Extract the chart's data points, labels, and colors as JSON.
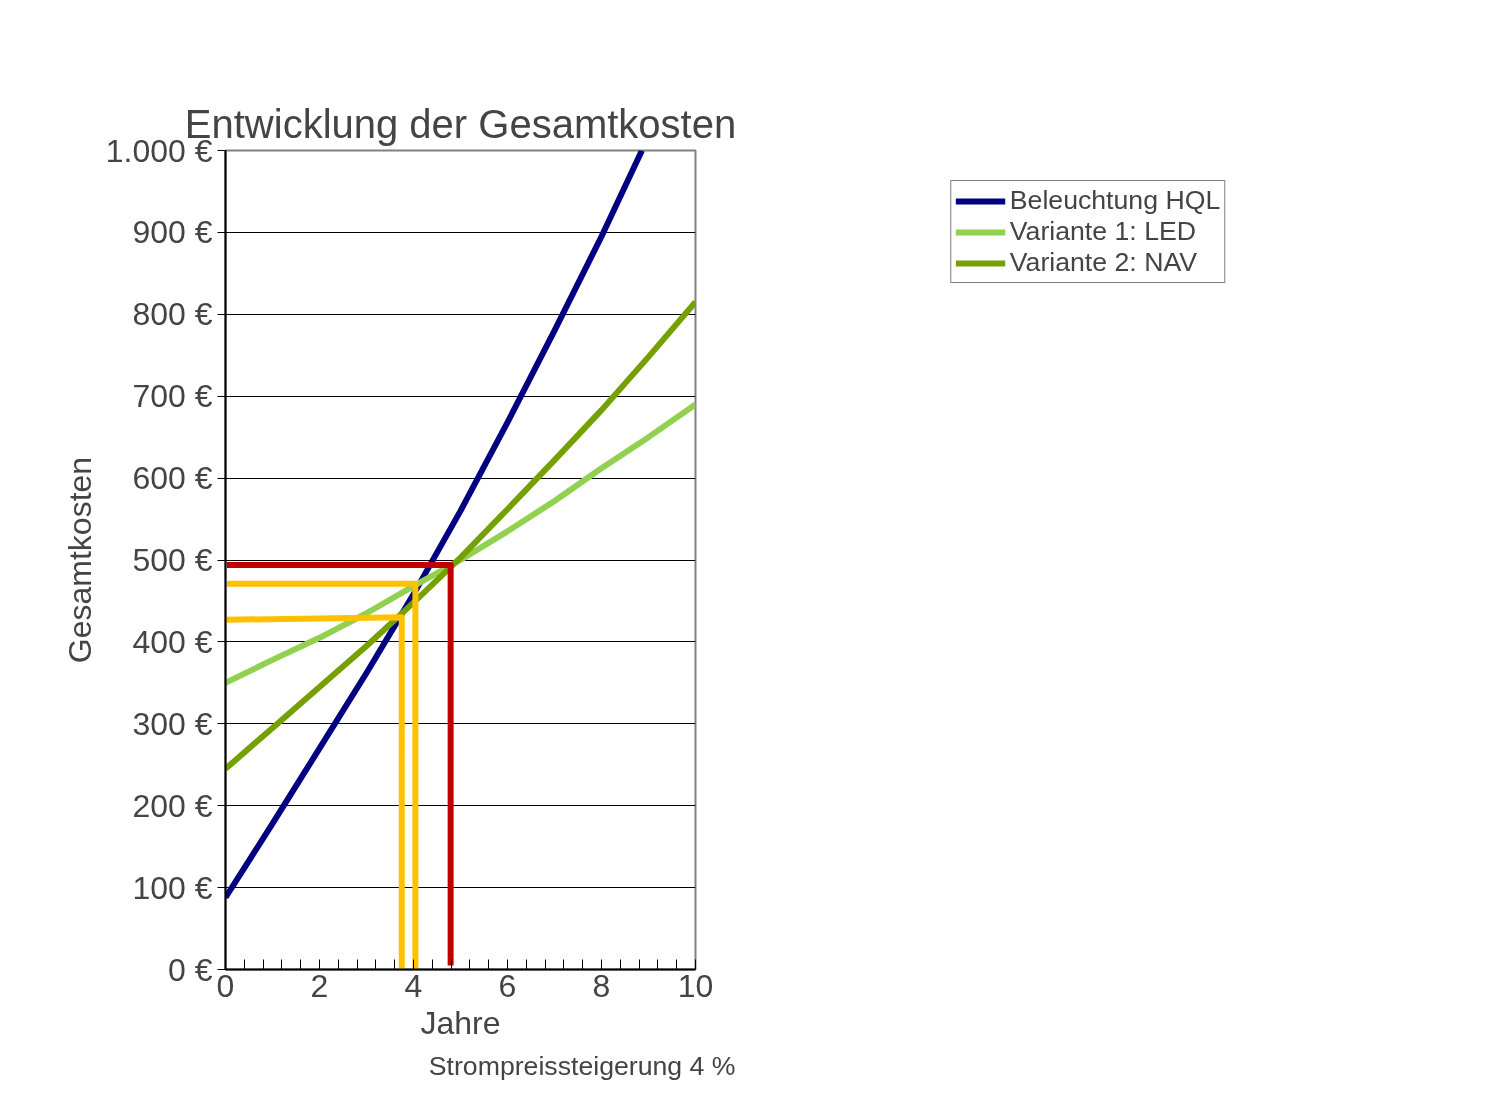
{
  "chart_data": {
    "type": "line",
    "title": "Entwicklung der Gesamtkosten",
    "xlabel": "Jahre",
    "ylabel": "Gesamtkosten",
    "annotations": [
      "Strompreissteigerung 4 %"
    ],
    "xlim": [
      0,
      10
    ],
    "ylim": [
      0,
      1000
    ],
    "xticks": [
      0,
      {
        "value": 0.4,
        "label": null
      },
      {
        "value": 0.8,
        "label": null
      },
      {
        "value": 1.2,
        "label": null
      },
      {
        "value": 1.6,
        "label": null
      },
      2,
      {
        "value": 2.4,
        "label": null
      },
      {
        "value": 2.8,
        "label": null
      },
      {
        "value": 3.2,
        "label": null
      },
      {
        "value": 3.6,
        "label": null
      },
      4,
      {
        "value": 4.4,
        "label": null
      },
      {
        "value": 4.8,
        "label": null
      },
      {
        "value": 5.2,
        "label": null
      },
      {
        "value": 5.6,
        "label": null
      },
      6,
      {
        "value": 6.4,
        "label": null
      },
      {
        "value": 6.8,
        "label": null
      },
      {
        "value": 7.2,
        "label": null
      },
      {
        "value": 7.6,
        "label": null
      },
      8,
      {
        "value": 8.4,
        "label": null
      },
      {
        "value": 8.8,
        "label": null
      },
      {
        "value": 9.2,
        "label": null
      },
      {
        "value": 9.6,
        "label": null
      },
      10
    ],
    "yticks": [
      {
        "value": 0,
        "label": "0 €"
      },
      {
        "value": 100,
        "label": "100 €"
      },
      {
        "value": 200,
        "label": "200 €"
      },
      {
        "value": 300,
        "label": "300 €"
      },
      {
        "value": 400,
        "label": "400 €"
      },
      {
        "value": 500,
        "label": "500 €"
      },
      {
        "value": 600,
        "label": "600 €"
      },
      {
        "value": 700,
        "label": "700 €"
      },
      {
        "value": 800,
        "label": "800 €"
      },
      {
        "value": 900,
        "label": "900 €"
      },
      {
        "value": 1000,
        "label": "1.000 €"
      }
    ],
    "grid": "y",
    "legend": "right",
    "line_style": "solid",
    "series": [
      {
        "name": "Beleuchtung HQL",
        "color": "#000080",
        "x": [
          0,
          1,
          2,
          3,
          4,
          5,
          6,
          7,
          8,
          8.86
        ],
        "values": [
          88,
          178,
          270,
          362,
          458,
          560,
          668,
          780,
          895,
          1000
        ]
      },
      {
        "name": "Variante 1: LED",
        "color": "#92d050",
        "x": [
          0,
          1,
          2,
          3,
          4,
          5,
          6,
          7,
          8,
          9,
          10
        ],
        "values": [
          350,
          378,
          405,
          435,
          468,
          500,
          535,
          572,
          612,
          650,
          690
        ]
      },
      {
        "name": "Variante 2: NAV",
        "color": "#76a000",
        "x": [
          0,
          1,
          2,
          3,
          4,
          5,
          6,
          7,
          8,
          9,
          10
        ],
        "values": [
          245,
          295,
          345,
          395,
          448,
          503,
          562,
          622,
          683,
          748,
          815
        ]
      },
      {
        "color": "#c00000",
        "x": [
          0.03,
          4.79,
          4.79
        ],
        "values": [
          494,
          494,
          5
        ]
      },
      {
        "color": "#ffc000",
        "x": [
          0.03,
          4.04,
          4.04
        ],
        "values": [
          471,
          471,
          0
        ]
      },
      {
        "color": "#ffc000",
        "x": [
          0,
          3.75,
          3.75
        ],
        "values": [
          427,
          430,
          0
        ]
      }
    ]
  }
}
